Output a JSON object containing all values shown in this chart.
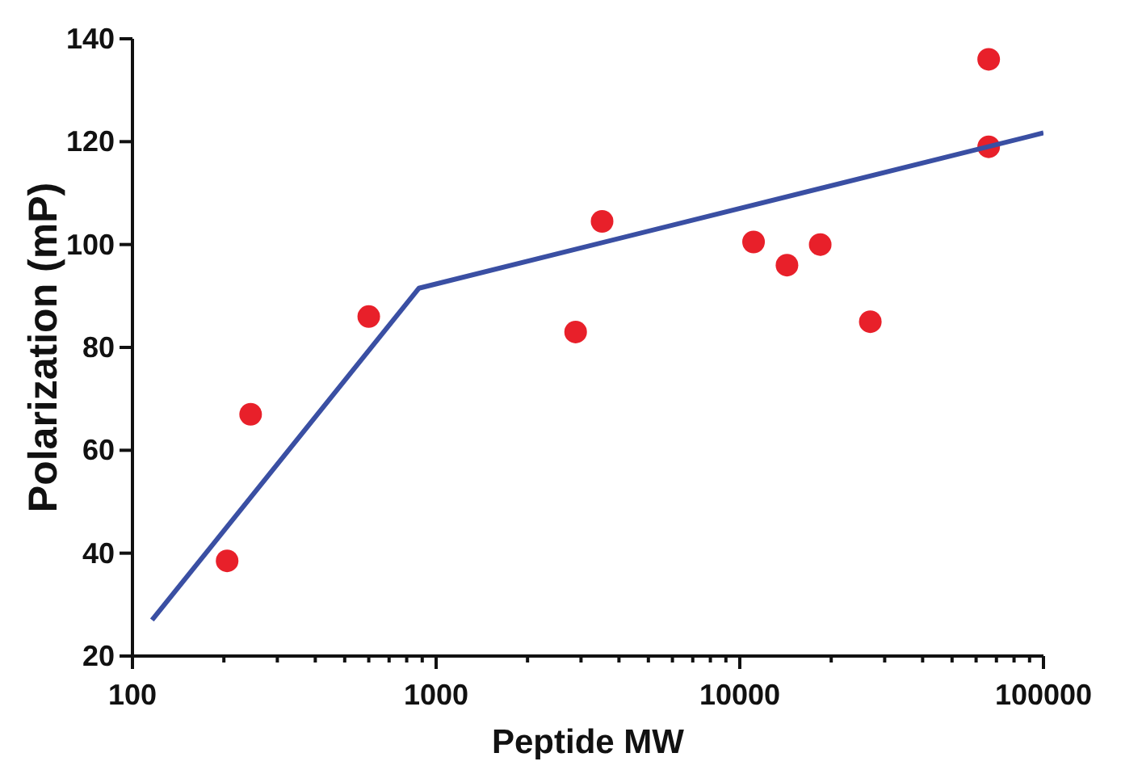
{
  "chart_data": {
    "type": "scatter",
    "xlabel": "Peptide MW",
    "ylabel": "Polarization (mP)",
    "log": "x",
    "xlim": [
      100,
      100000
    ],
    "ylim": [
      20,
      140
    ],
    "xticks": [
      100,
      {
        "value": 200,
        "label": null
      },
      {
        "value": 300,
        "label": null
      },
      {
        "value": 400,
        "label": null
      },
      {
        "value": 500,
        "label": null
      },
      {
        "value": 600,
        "label": null
      },
      {
        "value": 700,
        "label": null
      },
      {
        "value": 800,
        "label": null
      },
      {
        "value": 900,
        "label": null
      },
      1000,
      {
        "value": 2000,
        "label": null
      },
      {
        "value": 3000,
        "label": null
      },
      {
        "value": 4000,
        "label": null
      },
      {
        "value": 5000,
        "label": null
      },
      {
        "value": 6000,
        "label": null
      },
      {
        "value": 7000,
        "label": null
      },
      {
        "value": 8000,
        "label": null
      },
      {
        "value": 9000,
        "label": null
      },
      10000,
      {
        "value": 20000,
        "label": null
      },
      {
        "value": 30000,
        "label": null
      },
      {
        "value": 40000,
        "label": null
      },
      {
        "value": 50000,
        "label": null
      },
      {
        "value": 60000,
        "label": null
      },
      {
        "value": 70000,
        "label": null
      },
      {
        "value": 80000,
        "label": null
      },
      {
        "value": 90000,
        "label": null
      },
      100000
    ],
    "yticks": [
      20,
      40,
      60,
      80,
      100,
      120,
      140
    ],
    "grid": false,
    "legend": false,
    "series": [
      {
        "type": "scatter",
        "color": "#e8202a",
        "marker": "circle",
        "x": [
          205,
          245,
          600,
          2880,
          3520,
          11100,
          14300,
          18400,
          26900,
          66000,
          66000
        ],
        "values": [
          38.5,
          67,
          86,
          83,
          104.5,
          100.5,
          96,
          100,
          85,
          136,
          119
        ]
      },
      {
        "type": "line",
        "color": "#3a4fa3",
        "marker": "none",
        "line_style": "solid",
        "x": [
          116,
          877,
          100000
        ],
        "values": [
          27,
          91.5,
          121.7
        ]
      }
    ]
  }
}
